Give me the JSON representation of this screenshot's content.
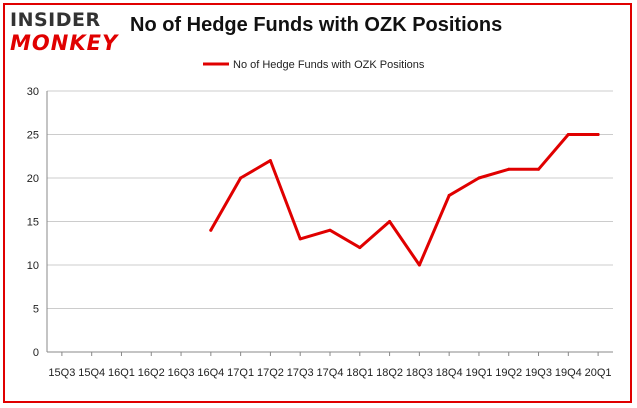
{
  "brand": {
    "logo_top": "INSIDER",
    "logo_bottom": "MONKEY"
  },
  "colors": {
    "accent": "#e00000",
    "grid": "#cccccc",
    "axis": "#888888"
  },
  "chart_data": {
    "type": "line",
    "title": "No of Hedge Funds with OZK Positions",
    "xlabel": "",
    "ylabel": "",
    "ylim": [
      0,
      30
    ],
    "yticks": [
      0,
      5,
      10,
      15,
      20,
      25,
      30
    ],
    "grid": true,
    "legend_position": "top-center",
    "categories": [
      "15Q3",
      "15Q4",
      "16Q1",
      "16Q2",
      "16Q3",
      "16Q4",
      "17Q1",
      "17Q2",
      "17Q3",
      "17Q4",
      "18Q1",
      "18Q2",
      "18Q3",
      "18Q4",
      "19Q1",
      "19Q2",
      "19Q3",
      "19Q4",
      "20Q1"
    ],
    "series": [
      {
        "name": "No of Hedge Funds with OZK Positions",
        "color": "#e00000",
        "values": [
          null,
          null,
          null,
          null,
          null,
          14,
          20,
          22,
          13,
          14,
          12,
          15,
          10,
          18,
          20,
          21,
          21,
          25,
          25
        ]
      }
    ]
  }
}
